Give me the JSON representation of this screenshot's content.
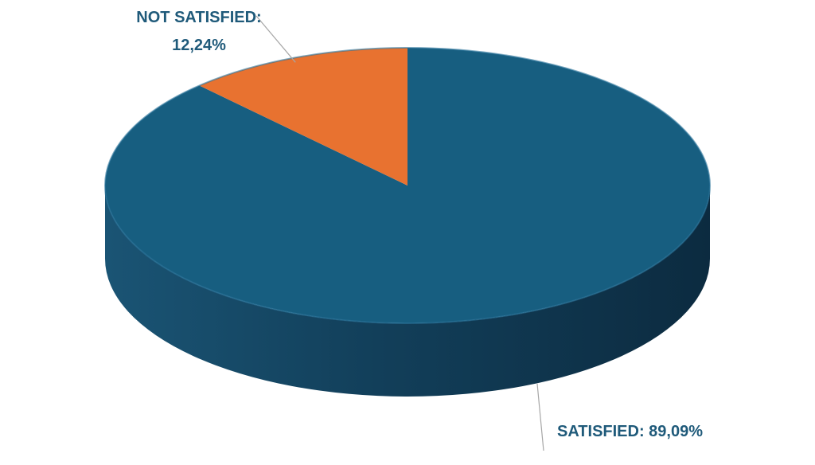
{
  "chart_data": {
    "type": "pie",
    "style": "3d",
    "title": "",
    "slices": [
      {
        "name": "SATISFIED",
        "value": 89.09,
        "label": "SATISFIED: 89,09%",
        "color": "#175E80"
      },
      {
        "name": "NOT SATISFIED",
        "value": 12.24,
        "label_line1": "NOT SATISFIED:",
        "label_line2": "12,24%",
        "color": "#E87230"
      }
    ],
    "label_color": "#1F5A7A",
    "leader_line_color": "#A6A6A6",
    "legend": "none"
  }
}
